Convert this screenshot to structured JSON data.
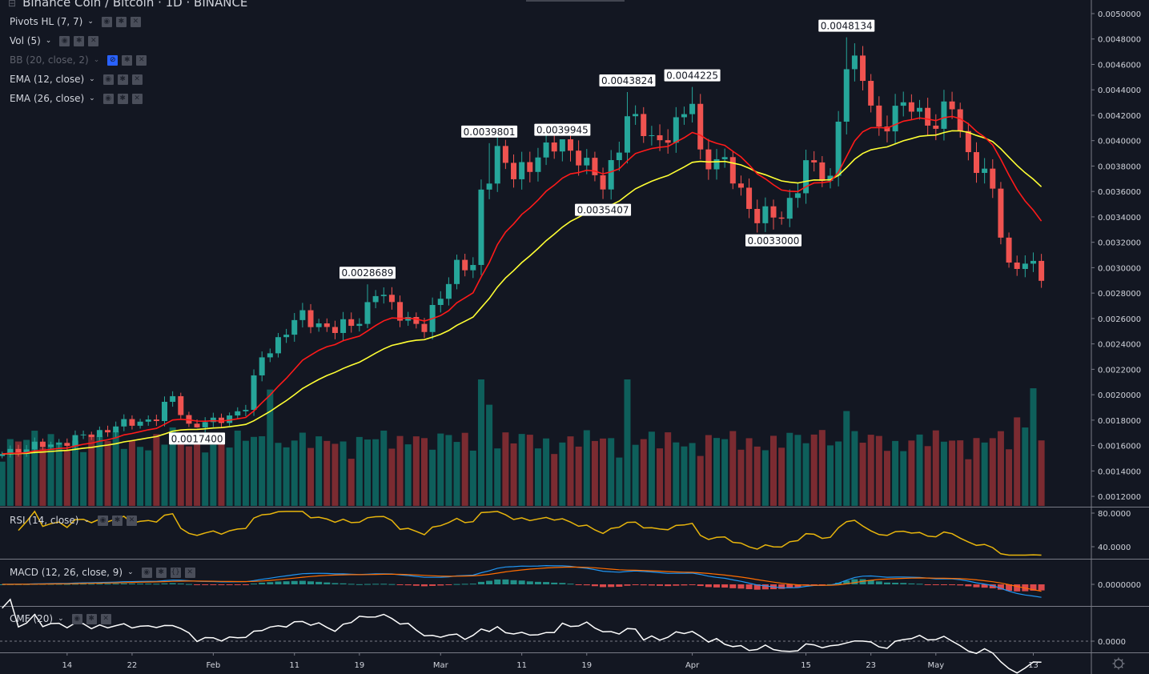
{
  "header": {
    "title": "Binance Coin / Bitcoin · 1D · BINANCE"
  },
  "indicators": [
    {
      "label": "Pivots HL (7, 7)",
      "hidden": false
    },
    {
      "label": "Vol (5)",
      "hidden": false
    },
    {
      "label": "BB (20, close, 2)",
      "hidden": true
    },
    {
      "label": "EMA (12, close)",
      "hidden": false
    },
    {
      "label": "EMA (26, close)",
      "hidden": false
    }
  ],
  "panes": {
    "rsi": {
      "label": "RSI (14, close)",
      "ticks": [
        "80.0000",
        "40.0000"
      ]
    },
    "macd": {
      "label": "MACD (12, 26, close, 9)",
      "ticks": [
        "0.0000000"
      ]
    },
    "cmf": {
      "label": "CMF (20)",
      "ticks": [
        "0.0000"
      ]
    }
  },
  "colors": {
    "up": "#26a69a",
    "down": "#ef5350",
    "vol_up": "#0e5f5b",
    "vol_down": "#7b2b31",
    "ema12": "#ff1a1a",
    "ema26": "#ffff33",
    "rsi": "#e8b50c",
    "macd": "#2196f3",
    "signal": "#ff6d00",
    "cmf": "#ffffff",
    "bg": "#131722"
  },
  "chart_data": {
    "type": "candlestick",
    "symbol": "BNB/BTC",
    "interval": "1D",
    "day_index_note": "day 0 = Jan 1",
    "close_keypoints": [
      [
        5,
        0.00155
      ],
      [
        13,
        0.00163
      ],
      [
        19,
        0.00175
      ],
      [
        24,
        0.00182
      ],
      [
        26,
        0.00198
      ],
      [
        28,
        0.00176
      ],
      [
        31,
        0.00178
      ],
      [
        35,
        0.0019
      ],
      [
        37,
        0.0023
      ],
      [
        40,
        0.0025
      ],
      [
        42,
        0.00262
      ],
      [
        46,
        0.0025
      ],
      [
        49,
        0.0026
      ],
      [
        51,
        0.0028
      ],
      [
        53,
        0.0027
      ],
      [
        57,
        0.0025
      ],
      [
        59,
        0.0028
      ],
      [
        61,
        0.00302
      ],
      [
        63,
        0.00298
      ],
      [
        64,
        0.0036
      ],
      [
        66,
        0.00392
      ],
      [
        68,
        0.0037
      ],
      [
        71,
        0.0039
      ],
      [
        74,
        0.00396
      ],
      [
        76,
        0.0039
      ],
      [
        79,
        0.00362
      ],
      [
        80,
        0.0038
      ],
      [
        82,
        0.0042
      ],
      [
        85,
        0.004
      ],
      [
        88,
        0.0041
      ],
      [
        90,
        0.0043
      ],
      [
        91,
        0.0039
      ],
      [
        94,
        0.0038
      ],
      [
        98,
        0.0034
      ],
      [
        101,
        0.0034
      ],
      [
        104,
        0.0038
      ],
      [
        107,
        0.0037
      ],
      [
        108,
        0.0042
      ],
      [
        109,
        0.0046
      ],
      [
        111,
        0.0045
      ],
      [
        113,
        0.0041
      ],
      [
        117,
        0.0043
      ],
      [
        120,
        0.0041
      ],
      [
        122,
        0.0043
      ],
      [
        124,
        0.0039
      ],
      [
        127,
        0.0036
      ],
      [
        128,
        0.0033
      ],
      [
        129,
        0.00302
      ],
      [
        131,
        0.00302
      ],
      [
        133,
        0.00295
      ]
    ],
    "volume_peaks": [
      [
        26,
        0.62
      ],
      [
        38,
        0.92
      ],
      [
        44,
        0.55
      ],
      [
        56,
        0.55
      ],
      [
        64,
        1.0
      ],
      [
        65,
        0.8
      ],
      [
        82,
        1.0
      ],
      [
        106,
        0.6
      ],
      [
        109,
        0.75
      ],
      [
        130,
        0.7
      ],
      [
        131,
        0.62
      ],
      [
        132,
        0.93
      ]
    ],
    "pivots": [
      {
        "day": 29,
        "label": "0.0017400",
        "type": "low"
      },
      {
        "day": 50,
        "label": "0.0028689",
        "type": "high"
      },
      {
        "day": 65,
        "label": "0.0039801",
        "type": "high"
      },
      {
        "day": 74,
        "label": "0.0039945",
        "type": "high"
      },
      {
        "day": 79,
        "label": "0.0035407",
        "type": "low"
      },
      {
        "day": 82,
        "label": "0.0043824",
        "type": "high"
      },
      {
        "day": 90,
        "label": "0.0044225",
        "type": "high"
      },
      {
        "day": 100,
        "label": "0.0033000",
        "type": "low"
      },
      {
        "day": 109,
        "label": "0.0048134",
        "type": "high"
      }
    ],
    "price_ticks": [
      "0.0050000",
      "0.0048000",
      "0.0046000",
      "0.0044000",
      "0.0042000",
      "0.0040000",
      "0.0038000",
      "0.0036000",
      "0.0034000",
      "0.0032000",
      "0.0030000",
      "0.0028000",
      "0.0026000",
      "0.0024000",
      "0.0022000",
      "0.0020000",
      "0.0018000",
      "0.0016000",
      "0.0014000",
      "0.0012000"
    ],
    "ylim": [
      0.0012,
      0.005
    ],
    "time_ticks": [
      [
        13,
        "14"
      ],
      [
        21,
        "22"
      ],
      [
        31,
        "Feb"
      ],
      [
        41,
        "11"
      ],
      [
        49,
        "19"
      ],
      [
        59,
        "Mar"
      ],
      [
        69,
        "11"
      ],
      [
        77,
        "19"
      ],
      [
        90,
        "Apr"
      ],
      [
        104,
        "15"
      ],
      [
        112,
        "23"
      ],
      [
        120,
        "May"
      ],
      [
        132,
        "13"
      ]
    ]
  }
}
